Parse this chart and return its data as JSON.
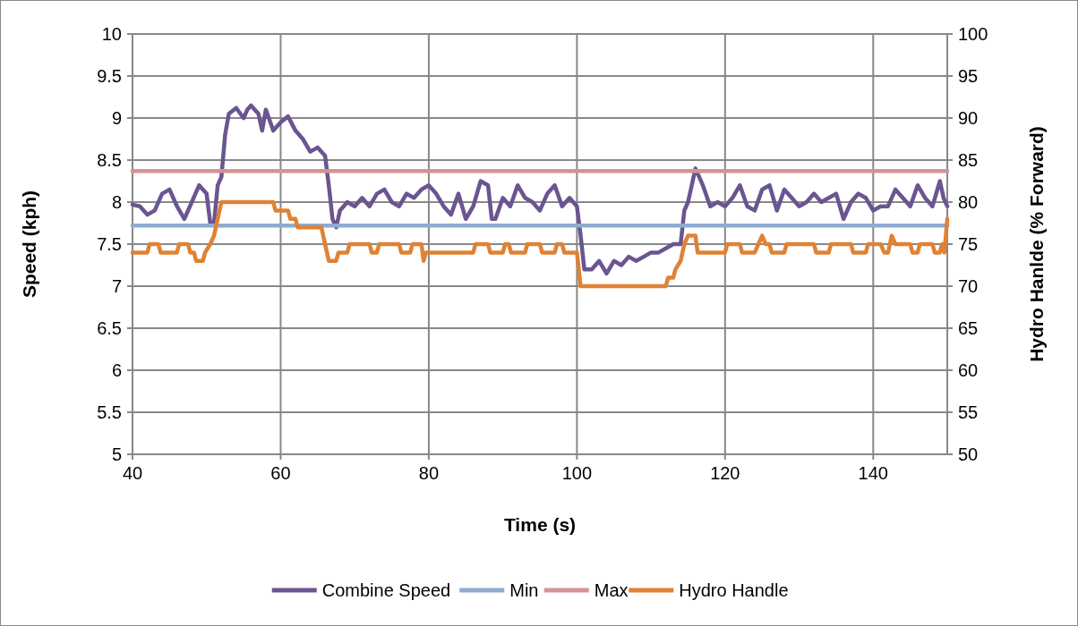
{
  "chart_data": {
    "type": "line",
    "xlabel": "Time (s)",
    "ylabel": "Speed (kph)",
    "y2label": "Hydro Hanlde (% Forward)",
    "xlim": [
      40,
      150
    ],
    "xticks": [
      40,
      60,
      80,
      100,
      120,
      140
    ],
    "ylim": [
      5,
      10
    ],
    "yticks": [
      5,
      5.5,
      6,
      6.5,
      7,
      7.5,
      8,
      8.5,
      9,
      9.5,
      10
    ],
    "y2lim": [
      50,
      100
    ],
    "y2ticks": [
      50,
      55,
      60,
      65,
      70,
      75,
      80,
      85,
      90,
      95,
      100
    ],
    "grid": true,
    "legend": "bottom",
    "series": [
      {
        "name": "Combine Speed",
        "color": "#6a5591",
        "x": [
          40,
          41,
          42,
          43,
          44,
          45,
          46,
          47,
          48,
          49,
          50,
          50.5,
          51,
          51.5,
          52,
          52.5,
          53,
          54,
          55,
          55.5,
          56,
          57,
          57.5,
          58,
          59,
          60,
          61,
          62,
          63,
          64,
          65,
          66,
          66.5,
          67,
          67.5,
          68,
          69,
          70,
          71,
          72,
          73,
          74,
          75,
          76,
          77,
          78,
          79,
          80,
          81,
          82,
          83,
          84,
          85,
          86,
          87,
          88,
          88.5,
          89,
          90,
          91,
          92,
          93,
          94,
          95,
          96,
          97,
          98,
          99,
          100,
          100.5,
          101,
          102,
          103,
          104,
          105,
          106,
          107,
          108,
          109,
          110,
          111,
          112,
          113,
          114,
          114.5,
          115,
          116,
          117,
          118,
          119,
          120,
          121,
          122,
          123,
          124,
          125,
          126,
          127,
          128,
          129,
          130,
          131,
          132,
          133,
          134,
          135,
          136,
          137,
          138,
          139,
          140,
          141,
          142,
          143,
          144,
          145,
          146,
          147,
          148,
          149,
          149.5,
          150
        ],
        "values": [
          7.97,
          7.95,
          7.85,
          7.9,
          8.1,
          8.15,
          7.95,
          7.8,
          8.0,
          8.2,
          8.1,
          7.75,
          7.75,
          8.2,
          8.3,
          8.8,
          9.05,
          9.12,
          9.0,
          9.1,
          9.15,
          9.05,
          8.85,
          9.1,
          8.85,
          8.95,
          9.02,
          8.85,
          8.75,
          8.6,
          8.65,
          8.55,
          8.2,
          7.8,
          7.7,
          7.9,
          8.0,
          7.95,
          8.05,
          7.95,
          8.1,
          8.15,
          8.0,
          7.95,
          8.1,
          8.05,
          8.15,
          8.2,
          8.1,
          7.95,
          7.85,
          8.1,
          7.8,
          7.95,
          8.25,
          8.2,
          7.8,
          7.8,
          8.05,
          7.95,
          8.2,
          8.05,
          8.0,
          7.9,
          8.1,
          8.2,
          7.95,
          8.05,
          7.95,
          7.6,
          7.2,
          7.2,
          7.3,
          7.15,
          7.3,
          7.25,
          7.35,
          7.3,
          7.35,
          7.4,
          7.4,
          7.45,
          7.5,
          7.5,
          7.9,
          8.0,
          8.4,
          8.2,
          7.95,
          8.0,
          7.95,
          8.05,
          8.2,
          7.95,
          7.9,
          8.15,
          8.2,
          7.9,
          8.15,
          8.05,
          7.95,
          8.0,
          8.1,
          8.0,
          8.05,
          8.1,
          7.8,
          8.0,
          8.1,
          8.05,
          7.9,
          7.95,
          7.95,
          8.15,
          8.05,
          7.95,
          8.2,
          8.05,
          7.95,
          8.25,
          8.05,
          7.95
        ]
      },
      {
        "name": "Min",
        "color": "#8fabd0",
        "x": [
          40,
          150
        ],
        "values": [
          7.72,
          7.72
        ]
      },
      {
        "name": "Max",
        "color": "#d49392",
        "x": [
          40,
          150
        ],
        "values": [
          8.37,
          8.37
        ]
      },
      {
        "name": "Hydro Handle",
        "color": "#e08234",
        "axis": "y2",
        "x": [
          40,
          42,
          42.3,
          43.5,
          43.8,
          46,
          46.3,
          47.5,
          47.8,
          48.3,
          48.6,
          49.5,
          49.8,
          50.5,
          51,
          51.5,
          52,
          59,
          59.3,
          61,
          61.3,
          62,
          62.3,
          65.5,
          66,
          66.5,
          67.5,
          67.8,
          69,
          69.3,
          72,
          72.3,
          73,
          73.3,
          76,
          76.3,
          77.5,
          77.8,
          79,
          79.3,
          79.6,
          86,
          86.3,
          88,
          88.3,
          90,
          90.3,
          90.8,
          91.1,
          93,
          93.3,
          95,
          95.3,
          97,
          97.3,
          98,
          98.3,
          100,
          100.5,
          112,
          112.3,
          113,
          113.3,
          114,
          114.5,
          115,
          116,
          116.3,
          120,
          120.3,
          122,
          122.3,
          124,
          124.5,
          125,
          125.5,
          126,
          126.3,
          128,
          128.3,
          132,
          132.3,
          134,
          134.3,
          137,
          137.3,
          139,
          139.3,
          141,
          141.5,
          142,
          142.5,
          143,
          143.3,
          145,
          145.3,
          146,
          146.3,
          148,
          148.3,
          149,
          149.3,
          149.6,
          150
        ],
        "values": [
          74,
          74,
          75,
          75,
          74,
          74,
          75,
          75,
          74,
          74,
          73,
          73,
          74,
          75,
          76,
          78,
          80,
          80,
          79,
          79,
          78,
          78,
          77,
          77,
          75,
          73,
          73,
          74,
          74,
          75,
          75,
          74,
          74,
          75,
          75,
          74,
          74,
          75,
          75,
          73,
          74,
          74,
          75,
          75,
          74,
          74,
          75,
          75,
          74,
          74,
          75,
          75,
          74,
          74,
          75,
          75,
          74,
          74,
          70,
          70,
          71,
          71,
          72,
          73,
          75,
          76,
          76,
          74,
          74,
          75,
          75,
          74,
          74,
          75,
          76,
          75,
          75,
          74,
          74,
          75,
          75,
          74,
          74,
          75,
          75,
          74,
          74,
          75,
          75,
          74,
          74,
          76,
          75,
          75,
          75,
          74,
          74,
          75,
          75,
          74,
          74,
          75,
          74,
          78
        ]
      }
    ]
  }
}
